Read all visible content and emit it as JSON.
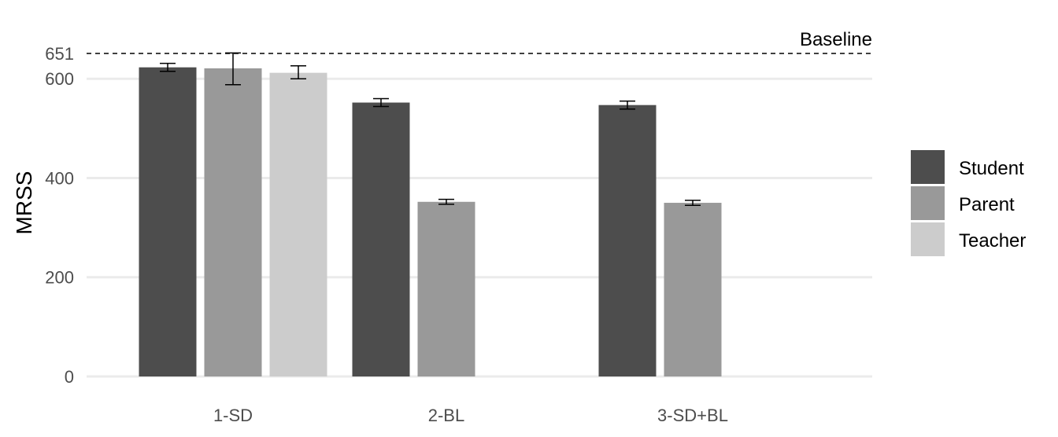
{
  "chart_data": {
    "type": "bar",
    "title": "",
    "xlabel": "",
    "ylabel": "MRSS",
    "ylim": [
      0,
      651
    ],
    "y_ticks": [
      0,
      200,
      400,
      600,
      651
    ],
    "y_tick_labels": [
      "0",
      "200",
      "400",
      "600",
      "651"
    ],
    "grid": "horizontal",
    "legend_position": "right",
    "categories": [
      "1-SD",
      "2-BL",
      "3-SD+BL"
    ],
    "series": [
      {
        "name": "Student",
        "color": "#4d4d4d",
        "values": [
          623,
          552,
          547
        ],
        "errors": [
          [
            615,
            631
          ],
          [
            544,
            560
          ],
          [
            539,
            555
          ]
        ]
      },
      {
        "name": "Parent",
        "color": "#999999",
        "values": [
          621,
          352,
          350
        ],
        "errors": [
          [
            588,
            652
          ],
          [
            347,
            357
          ],
          [
            345,
            355
          ]
        ]
      },
      {
        "name": "Teacher",
        "color": "#cccccc",
        "values": [
          612,
          null,
          null
        ],
        "errors": [
          [
            600,
            626
          ],
          null,
          null
        ]
      }
    ],
    "reference_line": {
      "label": "Baseline",
      "value": 651,
      "style": "dashed"
    }
  }
}
